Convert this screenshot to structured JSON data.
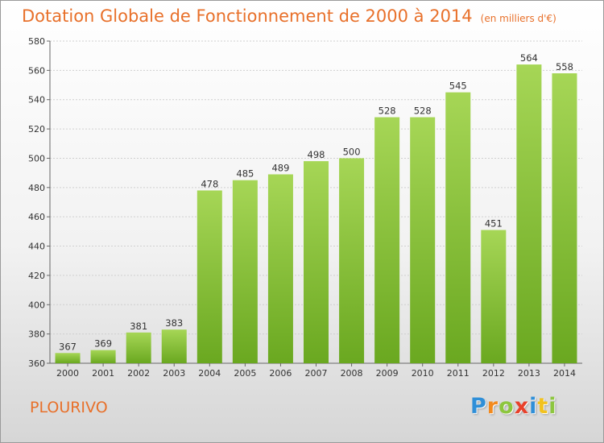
{
  "title": "Dotation Globale de Fonctionnement de 2000 à 2014",
  "subtitle": "(en milliers d'€)",
  "commune": "PLOURIVO",
  "brand": {
    "letters": [
      "P",
      "r",
      "o",
      "x",
      "i",
      "t",
      "i"
    ],
    "colors": [
      "#2f8fd8",
      "#f28a1e",
      "#8dc63f",
      "#e8402a",
      "#2f8fd8",
      "#f2c21e",
      "#8dc63f"
    ]
  },
  "colors": {
    "title": "#e8702a",
    "bar_light": "#a6d656",
    "bar_dark": "#6aa820",
    "grid": "#d0d0d0",
    "axis": "#666666"
  },
  "chart_data": {
    "type": "bar",
    "categories": [
      "2000",
      "2001",
      "2002",
      "2003",
      "2004",
      "2005",
      "2006",
      "2007",
      "2008",
      "2009",
      "2010",
      "2011",
      "2012",
      "2013",
      "2014"
    ],
    "values": [
      367,
      369,
      381,
      383,
      478,
      485,
      489,
      498,
      500,
      528,
      528,
      545,
      451,
      564,
      558
    ],
    "title": "Dotation Globale de Fonctionnement de 2000 à 2014",
    "subtitle": "(en milliers d'€)",
    "ylim": [
      360,
      580
    ],
    "yticks": [
      360,
      380,
      400,
      420,
      440,
      460,
      480,
      500,
      520,
      540,
      560,
      580
    ],
    "grid": true,
    "data_labels": true
  }
}
